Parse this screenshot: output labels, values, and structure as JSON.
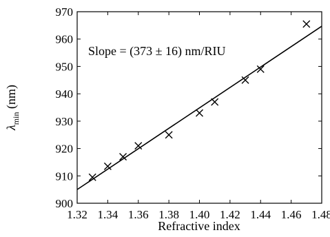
{
  "chart_data": {
    "type": "scatter",
    "title": "",
    "xlabel": "Refractive index",
    "ylabel_symbol": "λ",
    "ylabel_subscript": "min",
    "ylabel_unit": " (nm)",
    "xlim": [
      1.32,
      1.48
    ],
    "ylim": [
      900,
      970
    ],
    "xticks": [
      1.32,
      1.34,
      1.36,
      1.38,
      1.4,
      1.42,
      1.44,
      1.46,
      1.48
    ],
    "xtick_labels": [
      "1.32",
      "1.34",
      "1.36",
      "1.38",
      "1.40",
      "1.42",
      "1.44",
      "1.46",
      "1.48"
    ],
    "yticks": [
      900,
      910,
      920,
      930,
      940,
      950,
      960,
      970
    ],
    "ytick_labels": [
      "900",
      "910",
      "920",
      "930",
      "940",
      "950",
      "960",
      "970"
    ],
    "grid": false,
    "marker": "x",
    "points": [
      {
        "x": 1.33,
        "y": 909.5
      },
      {
        "x": 1.34,
        "y": 913.5
      },
      {
        "x": 1.35,
        "y": 917.0
      },
      {
        "x": 1.36,
        "y": 921.0
      },
      {
        "x": 1.38,
        "y": 925.0
      },
      {
        "x": 1.4,
        "y": 933.0
      },
      {
        "x": 1.41,
        "y": 937.0
      },
      {
        "x": 1.43,
        "y": 945.0
      },
      {
        "x": 1.44,
        "y": 949.0
      },
      {
        "x": 1.47,
        "y": 965.5
      }
    ],
    "fit_line": {
      "x": [
        1.32,
        1.48
      ],
      "y": [
        905.0,
        964.7
      ]
    },
    "annotation": "Slope = (373 ± 16) nm/RIU"
  }
}
